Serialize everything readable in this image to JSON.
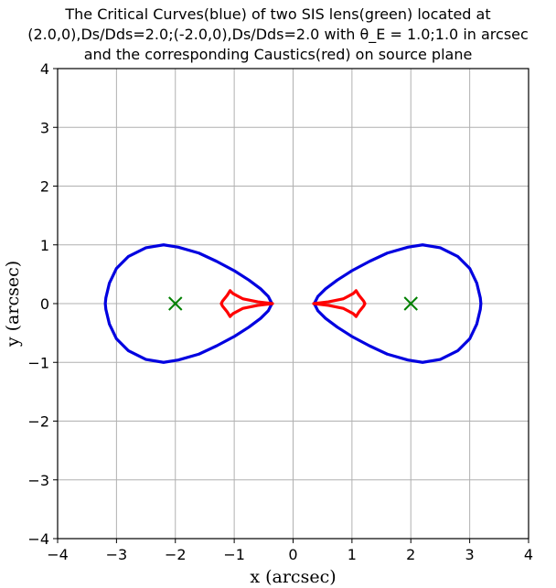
{
  "chart_data": {
    "type": "scatter",
    "title_lines": [
      "The Critical Curves(blue) of two SIS lens(green) located at",
      "(2.0,0),Ds/Dds=2.0;(-2.0,0),Ds/Dds=2.0 with θ_E = 1.0;1.0 in arcsec",
      "and the corresponding Caustics(red) on source plane"
    ],
    "xlabel": "x (arcsec)",
    "ylabel": "y (arcsec)",
    "xlim": [
      -4,
      4
    ],
    "ylim": [
      -4,
      4
    ],
    "xticks": [
      -4,
      -3,
      -2,
      -1,
      0,
      1,
      2,
      3,
      4
    ],
    "yticks": [
      -4,
      -3,
      -2,
      -1,
      0,
      1,
      2,
      3,
      4
    ],
    "xtick_labels": [
      "−4",
      "−3",
      "−2",
      "−1",
      "0",
      "1",
      "2",
      "3",
      "4"
    ],
    "ytick_labels": [
      "−4",
      "−3",
      "−2",
      "−1",
      "0",
      "1",
      "2",
      "3",
      "4"
    ],
    "grid": true,
    "colors": {
      "critical": "#0000e0",
      "caustic": "#ff0000",
      "lens": "#008000"
    },
    "lenses": [
      {
        "x": 2.0,
        "y": 0.0
      },
      {
        "x": -2.0,
        "y": 0.0
      }
    ],
    "critical_curves": [
      {
        "name": "critical curve right",
        "points": [
          [
            0.36,
            0
          ],
          [
            0.42,
            0.12
          ],
          [
            0.55,
            0.25
          ],
          [
            0.75,
            0.4
          ],
          [
            1.0,
            0.56
          ],
          [
            1.3,
            0.72
          ],
          [
            1.6,
            0.86
          ],
          [
            1.95,
            0.96
          ],
          [
            2.2,
            1.0
          ],
          [
            2.5,
            0.95
          ],
          [
            2.8,
            0.8
          ],
          [
            3.0,
            0.6
          ],
          [
            3.12,
            0.35
          ],
          [
            3.18,
            0.1
          ],
          [
            3.19,
            0
          ],
          [
            3.18,
            -0.1
          ],
          [
            3.12,
            -0.35
          ],
          [
            3.0,
            -0.6
          ],
          [
            2.8,
            -0.8
          ],
          [
            2.5,
            -0.95
          ],
          [
            2.2,
            -1.0
          ],
          [
            1.95,
            -0.96
          ],
          [
            1.6,
            -0.86
          ],
          [
            1.3,
            -0.72
          ],
          [
            1.0,
            -0.56
          ],
          [
            0.75,
            -0.4
          ],
          [
            0.55,
            -0.25
          ],
          [
            0.42,
            -0.12
          ],
          [
            0.36,
            0
          ]
        ]
      },
      {
        "name": "critical curve left",
        "points": [
          [
            -0.36,
            0
          ],
          [
            -0.42,
            0.12
          ],
          [
            -0.55,
            0.25
          ],
          [
            -0.75,
            0.4
          ],
          [
            -1.0,
            0.56
          ],
          [
            -1.3,
            0.72
          ],
          [
            -1.6,
            0.86
          ],
          [
            -1.95,
            0.96
          ],
          [
            -2.2,
            1.0
          ],
          [
            -2.5,
            0.95
          ],
          [
            -2.8,
            0.8
          ],
          [
            -3.0,
            0.6
          ],
          [
            -3.12,
            0.35
          ],
          [
            -3.18,
            0.1
          ],
          [
            -3.19,
            0
          ],
          [
            -3.18,
            -0.1
          ],
          [
            -3.12,
            -0.35
          ],
          [
            -3.0,
            -0.6
          ],
          [
            -2.8,
            -0.8
          ],
          [
            -2.5,
            -0.95
          ],
          [
            -2.2,
            -1.0
          ],
          [
            -1.95,
            -0.96
          ],
          [
            -1.6,
            -0.86
          ],
          [
            -1.3,
            -0.72
          ],
          [
            -1.0,
            -0.56
          ],
          [
            -0.75,
            -0.4
          ],
          [
            -0.55,
            -0.25
          ],
          [
            -0.42,
            -0.12
          ],
          [
            -0.36,
            0
          ]
        ]
      }
    ],
    "caustics": [
      {
        "name": "caustic right",
        "points": [
          [
            0.35,
            0
          ],
          [
            0.6,
            0.03
          ],
          [
            0.85,
            0.08
          ],
          [
            1.02,
            0.17
          ],
          [
            1.07,
            0.22
          ],
          [
            1.12,
            0.14
          ],
          [
            1.2,
            0.04
          ],
          [
            1.22,
            0
          ],
          [
            1.2,
            -0.04
          ],
          [
            1.12,
            -0.14
          ],
          [
            1.07,
            -0.22
          ],
          [
            1.02,
            -0.17
          ],
          [
            0.85,
            -0.08
          ],
          [
            0.6,
            -0.03
          ],
          [
            0.35,
            0
          ]
        ]
      },
      {
        "name": "caustic left",
        "points": [
          [
            -0.35,
            0
          ],
          [
            -0.6,
            0.03
          ],
          [
            -0.85,
            0.08
          ],
          [
            -1.02,
            0.17
          ],
          [
            -1.07,
            0.22
          ],
          [
            -1.12,
            0.14
          ],
          [
            -1.2,
            0.04
          ],
          [
            -1.22,
            0
          ],
          [
            -1.2,
            -0.04
          ],
          [
            -1.12,
            -0.14
          ],
          [
            -1.07,
            -0.22
          ],
          [
            -1.02,
            -0.17
          ],
          [
            -0.85,
            -0.08
          ],
          [
            -0.6,
            -0.03
          ],
          [
            -0.35,
            0
          ]
        ]
      }
    ]
  }
}
